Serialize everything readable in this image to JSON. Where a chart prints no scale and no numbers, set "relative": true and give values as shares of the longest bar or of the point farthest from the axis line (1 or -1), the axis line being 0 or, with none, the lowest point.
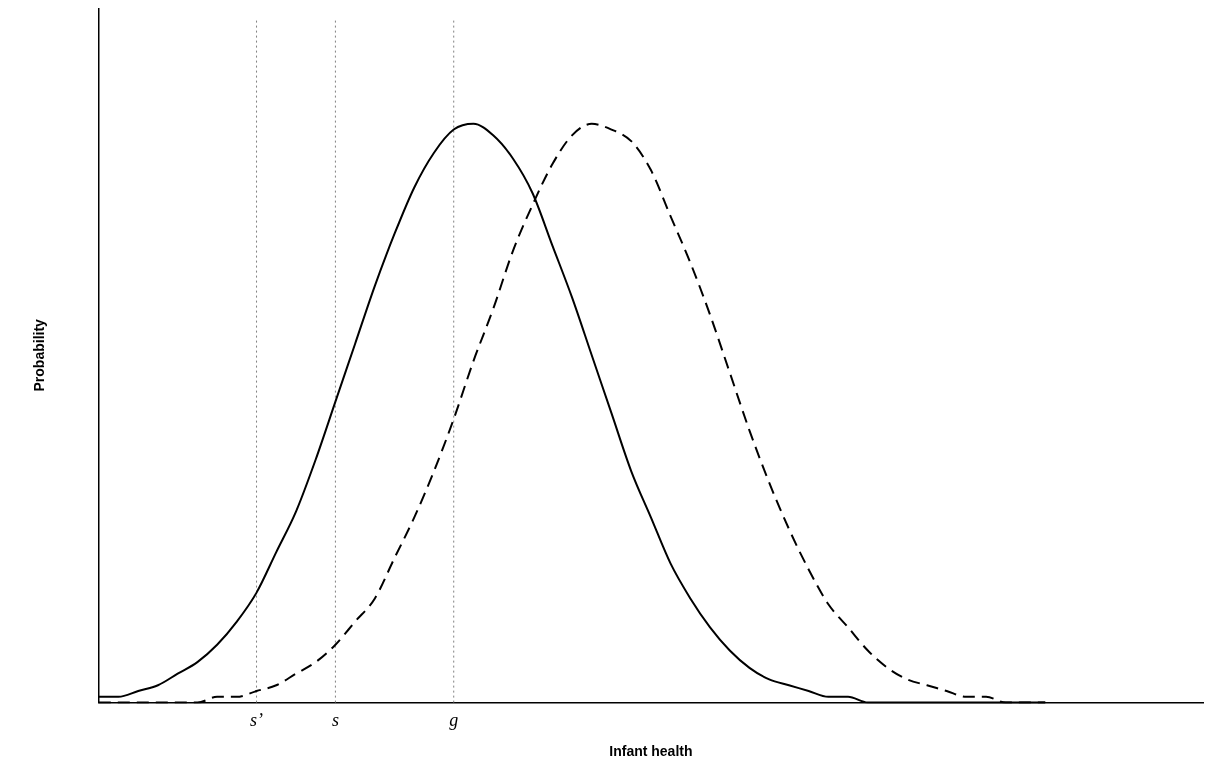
{
  "chart_data": {
    "type": "line",
    "relative": true,
    "xlabel": "Infant health",
    "ylabel": "Probability",
    "categories": [
      null,
      null,
      null,
      null,
      null,
      null,
      null,
      null,
      "s’",
      null,
      null,
      null,
      "s",
      null,
      null,
      null,
      null,
      null,
      "g",
      null,
      null,
      null,
      null,
      null,
      null,
      null,
      null,
      null,
      null,
      null,
      null,
      null,
      null,
      null,
      null,
      null,
      null,
      null,
      null,
      null,
      null,
      null,
      null,
      null,
      null,
      null,
      null,
      null,
      null,
      null,
      null,
      null,
      null,
      null,
      null,
      null,
      null
    ],
    "series": [
      {
        "color": "#000000",
        "line_style": "solid",
        "values": [
          0.01,
          0.01,
          0.02,
          0.03,
          0.05,
          0.07,
          0.1,
          0.14,
          0.19,
          0.26,
          0.33,
          0.42,
          0.52,
          0.62,
          0.72,
          0.81,
          0.89,
          0.95,
          0.99,
          1,
          0.98,
          0.94,
          0.88,
          0.79,
          0.7,
          0.6,
          0.5,
          0.4,
          0.32,
          0.24,
          0.18,
          0.13,
          0.09,
          0.06,
          0.04,
          0.03,
          0.02,
          0.01,
          0.01,
          0,
          0,
          0,
          0,
          0,
          0,
          0,
          0,
          0,
          0,
          null,
          null,
          null,
          null,
          null,
          null,
          null,
          null
        ]
      },
      {
        "color": "#000000",
        "line_style": "dashed",
        "values": [
          0,
          0,
          0,
          0,
          0,
          0,
          0.01,
          0.01,
          0.02,
          0.03,
          0.05,
          0.07,
          0.1,
          0.14,
          0.18,
          0.25,
          0.32,
          0.4,
          0.49,
          0.59,
          0.68,
          0.78,
          0.86,
          0.93,
          0.98,
          1,
          0.99,
          0.97,
          0.92,
          0.84,
          0.76,
          0.67,
          0.57,
          0.47,
          0.38,
          0.3,
          0.23,
          0.17,
          0.13,
          0.09,
          0.06,
          0.04,
          0.03,
          0.02,
          0.01,
          0.01,
          0,
          0,
          0,
          null,
          null,
          null,
          null,
          null,
          null,
          null,
          null
        ]
      }
    ],
    "ref_lines": [
      {
        "axis": "x",
        "value": "s’",
        "color": "#808080",
        "line_style": "dotted"
      },
      {
        "axis": "x",
        "value": "s",
        "color": "#808080",
        "line_style": "dotted"
      },
      {
        "axis": "x",
        "value": "g",
        "color": "#808080",
        "line_style": "dotted"
      }
    ],
    "legend": false,
    "grid": false
  }
}
